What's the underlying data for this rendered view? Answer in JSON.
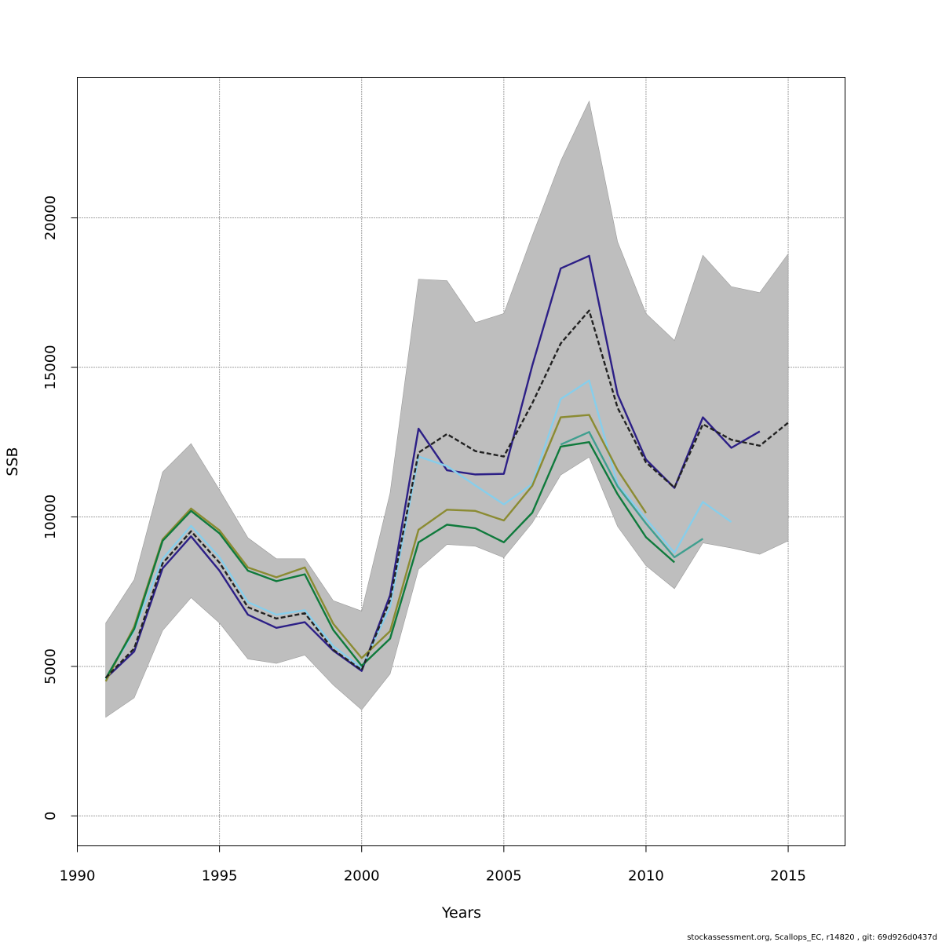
{
  "chart_data": {
    "type": "line",
    "title": "",
    "xlabel": "Years",
    "ylabel": "SSB",
    "xlim": [
      1990,
      2017
    ],
    "ylim": [
      -1000,
      24700
    ],
    "xticks": [
      1990,
      1995,
      2000,
      2005,
      2010,
      2015
    ],
    "yticks": [
      0,
      5000,
      10000,
      15000,
      20000
    ],
    "grid": true,
    "legend": "none",
    "band": {
      "color": "#bebebe",
      "x": [
        1991,
        1992,
        1993,
        1994,
        1995,
        1996,
        1997,
        1998,
        1999,
        2000,
        2001,
        2002,
        2003,
        2004,
        2005,
        2006,
        2007,
        2008,
        2009,
        2010,
        2011,
        2012,
        2013,
        2014,
        2015
      ],
      "upper": [
        6450,
        7900,
        11500,
        12450,
        10900,
        9300,
        8600,
        8600,
        7200,
        6850,
        10800,
        17950,
        17900,
        16500,
        16800,
        19400,
        21900,
        23900,
        19200,
        16800,
        15900,
        18750,
        17700,
        17500,
        18800
      ],
      "lower": [
        3300,
        3950,
        6200,
        7300,
        6450,
        5250,
        5100,
        5380,
        4380,
        3550,
        4750,
        8250,
        9080,
        9020,
        8640,
        9800,
        11400,
        12000,
        9680,
        8370,
        7600,
        9130,
        8960,
        8750,
        9200
      ]
    },
    "series": [
      {
        "color": "#222222",
        "dashed": true,
        "x": [
          1991,
          1992,
          1993,
          1994,
          1995,
          1996,
          1997,
          1998,
          1999,
          2000,
          2001,
          2002,
          2003,
          2004,
          2005,
          2006,
          2007,
          2008,
          2009,
          2010,
          2011,
          2012,
          2013,
          2014,
          2015
        ],
        "values": [
          4620,
          5600,
          8450,
          9520,
          8470,
          6980,
          6600,
          6780,
          5560,
          4880,
          7220,
          12150,
          12770,
          12200,
          12020,
          13800,
          15800,
          16900,
          13650,
          11820,
          10980,
          13100,
          12580,
          12380,
          13150
        ]
      },
      {
        "color": "#2c1f86",
        "dashed": false,
        "x": [
          1991,
          1992,
          1993,
          1994,
          1995,
          1996,
          1997,
          1998,
          1999,
          2000,
          2001,
          2002,
          2003,
          2004,
          2005,
          2006,
          2007,
          2008,
          2009,
          2010,
          2011,
          2012,
          2013,
          2014
        ],
        "values": [
          4600,
          5500,
          8280,
          9350,
          8200,
          6730,
          6290,
          6480,
          5530,
          4850,
          7380,
          12950,
          11560,
          11420,
          11440,
          15060,
          18310,
          18730,
          14100,
          11920,
          10970,
          13330,
          12310,
          12860
        ]
      },
      {
        "color": "#87ceeb",
        "dashed": false,
        "x": [
          1991,
          1992,
          1993,
          1994,
          1995,
          1996,
          1997,
          1998,
          1999,
          2000,
          2001,
          2002,
          2003,
          2004,
          2005,
          2006,
          2007,
          2008,
          2009,
          2010,
          2011,
          2012,
          2013
        ],
        "values": [
          4550,
          6200,
          8600,
          9700,
          8650,
          7150,
          6730,
          6880,
          5680,
          4950,
          7000,
          12020,
          11700,
          11050,
          10420,
          11100,
          13940,
          14560,
          11080,
          9930,
          8800,
          10500,
          9830
        ]
      },
      {
        "color": "#8b8b32",
        "dashed": false,
        "x": [
          1991,
          1992,
          1993,
          1994,
          1995,
          1996,
          1997,
          1998,
          1999,
          2000,
          2001,
          2002,
          2003,
          2004,
          2005,
          2006,
          2007,
          2008,
          2009,
          2010
        ],
        "values": [
          4500,
          6330,
          9250,
          10280,
          9550,
          8310,
          7980,
          8310,
          6430,
          5280,
          6180,
          9570,
          10240,
          10200,
          9880,
          11040,
          13330,
          13410,
          11570,
          10130
        ]
      },
      {
        "color": "#3f9f8f",
        "dashed": false,
        "x": [
          2007,
          2008,
          2009,
          2010,
          2011,
          2012
        ],
        "values": [
          12420,
          12840,
          11020,
          9780,
          8650,
          9270
        ]
      },
      {
        "color": "#0f7a3c",
        "dashed": false,
        "x": [
          1991,
          1992,
          1993,
          1994,
          1995,
          1996,
          1997,
          1998,
          1999,
          2000,
          2001,
          2002,
          2003,
          2004,
          2005,
          2006,
          2007,
          2008,
          2009,
          2010,
          2011
        ],
        "values": [
          4600,
          6250,
          9200,
          10200,
          9450,
          8200,
          7850,
          8080,
          6220,
          5020,
          5930,
          9150,
          9740,
          9620,
          9150,
          10140,
          12350,
          12500,
          10760,
          9320,
          8480
        ]
      }
    ]
  },
  "footer_text": "stockassessment.org, Scallops_EC, r14820 , git: 69d926d0437d"
}
